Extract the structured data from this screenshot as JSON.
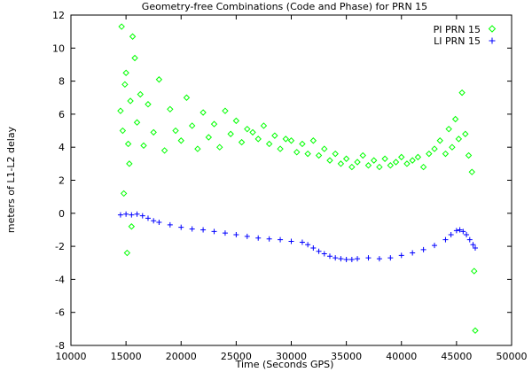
{
  "chart_data": {
    "type": "scatter",
    "title": "Geometry-free Combinations (Code and Phase) for PRN 15",
    "xlabel": "Time (Seconds GPS)",
    "ylabel": "meters of L1-L2 delay",
    "xlim": [
      10000,
      50000
    ],
    "ylim": [
      -8,
      12
    ],
    "xticks": [
      10000,
      15000,
      20000,
      25000,
      30000,
      35000,
      40000,
      45000,
      50000
    ],
    "yticks": [
      -8,
      -6,
      -4,
      -2,
      0,
      2,
      4,
      6,
      8,
      10,
      12
    ],
    "grid": false,
    "legend_position": "top-right",
    "series": [
      {
        "name": "PI PRN 15",
        "marker": "diamond",
        "color": "#00ff00",
        "x": [
          14500,
          14600,
          14700,
          14800,
          14900,
          15000,
          15100,
          15200,
          15300,
          15400,
          15500,
          15600,
          15800,
          16000,
          16300,
          16600,
          17000,
          17500,
          18000,
          18500,
          19000,
          19500,
          20000,
          20500,
          21000,
          21500,
          22000,
          22500,
          23000,
          23500,
          24000,
          24500,
          25000,
          25500,
          26000,
          26500,
          27000,
          27500,
          28000,
          28500,
          29000,
          29500,
          30000,
          30500,
          31000,
          31500,
          32000,
          32500,
          33000,
          33500,
          34000,
          34500,
          35000,
          35500,
          36000,
          36500,
          37000,
          37500,
          38000,
          38500,
          39000,
          39500,
          40000,
          40500,
          41000,
          41500,
          42000,
          42500,
          43000,
          43500,
          44000,
          44300,
          44600,
          44900,
          45200,
          45500,
          45800,
          46100,
          46400,
          46600,
          46700
        ],
        "y": [
          6.2,
          11.3,
          5.0,
          1.2,
          7.8,
          8.5,
          -2.4,
          4.2,
          3.0,
          6.8,
          -0.8,
          10.7,
          9.4,
          5.5,
          7.2,
          4.1,
          6.6,
          4.9,
          8.1,
          3.8,
          6.3,
          5.0,
          4.4,
          7.0,
          5.3,
          3.9,
          6.1,
          4.6,
          5.4,
          4.0,
          6.2,
          4.8,
          5.6,
          4.3,
          5.1,
          4.9,
          4.5,
          5.3,
          4.2,
          4.7,
          3.9,
          4.5,
          4.4,
          3.7,
          4.2,
          3.6,
          4.4,
          3.5,
          3.9,
          3.2,
          3.6,
          3.0,
          3.3,
          2.8,
          3.1,
          3.5,
          2.9,
          3.2,
          2.8,
          3.3,
          2.9,
          3.1,
          3.4,
          3.0,
          3.2,
          3.4,
          2.8,
          3.6,
          3.9,
          4.4,
          3.6,
          5.1,
          4.0,
          5.7,
          4.5,
          7.3,
          4.8,
          3.5,
          2.5,
          -3.5,
          -7.1
        ]
      },
      {
        "name": "LI PRN 15",
        "marker": "plus",
        "color": "#0000ff",
        "x": [
          14500,
          15000,
          15500,
          16000,
          16500,
          17000,
          17500,
          18000,
          19000,
          20000,
          21000,
          22000,
          23000,
          24000,
          25000,
          26000,
          27000,
          28000,
          29000,
          30000,
          31000,
          31500,
          32000,
          32500,
          33000,
          33500,
          34000,
          34500,
          35000,
          35500,
          36000,
          37000,
          38000,
          39000,
          40000,
          41000,
          42000,
          43000,
          44000,
          44500,
          45000,
          45300,
          45600,
          45900,
          46200,
          46500,
          46700
        ],
        "y": [
          -0.1,
          -0.05,
          -0.1,
          -0.05,
          -0.15,
          -0.3,
          -0.45,
          -0.55,
          -0.7,
          -0.85,
          -0.95,
          -1.0,
          -1.1,
          -1.2,
          -1.3,
          -1.4,
          -1.5,
          -1.55,
          -1.6,
          -1.7,
          -1.75,
          -1.9,
          -2.1,
          -2.3,
          -2.45,
          -2.6,
          -2.7,
          -2.75,
          -2.8,
          -2.8,
          -2.75,
          -2.7,
          -2.75,
          -2.7,
          -2.55,
          -2.4,
          -2.2,
          -1.95,
          -1.6,
          -1.3,
          -1.05,
          -1.0,
          -1.1,
          -1.3,
          -1.6,
          -1.9,
          -2.1
        ]
      }
    ]
  }
}
